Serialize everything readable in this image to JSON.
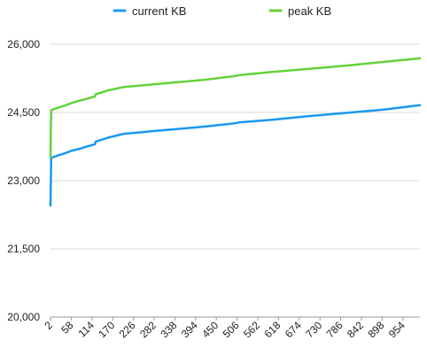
{
  "chart_data": {
    "type": "line",
    "title": "",
    "xlabel": "",
    "ylabel": "",
    "ylim": [
      20000,
      26000
    ],
    "y_ticks": [
      20000,
      21500,
      23000,
      24500,
      26000
    ],
    "y_tick_labels": [
      "20,000",
      "21,500",
      "23,000",
      "24,500",
      "26,000"
    ],
    "xlim": [
      2,
      1000
    ],
    "x_ticks": [
      2,
      58,
      114,
      170,
      226,
      282,
      338,
      394,
      450,
      506,
      562,
      618,
      674,
      730,
      786,
      842,
      898,
      954
    ],
    "x_tick_labels": [
      "2",
      "58",
      "114",
      "170",
      "226",
      "282",
      "338",
      "394",
      "450",
      "506",
      "562",
      "618",
      "674",
      "730",
      "786",
      "842",
      "898",
      "954"
    ],
    "grid": "horizontal",
    "legend_position": "top",
    "series": [
      {
        "name": "current KB",
        "color": "#1a98ee",
        "points": [
          [
            2,
            22450
          ],
          [
            3,
            23000
          ],
          [
            4,
            23500
          ],
          [
            20,
            23550
          ],
          [
            40,
            23600
          ],
          [
            60,
            23660
          ],
          [
            80,
            23700
          ],
          [
            100,
            23750
          ],
          [
            122,
            23800
          ],
          [
            124,
            23860
          ],
          [
            160,
            23950
          ],
          [
            200,
            24030
          ],
          [
            240,
            24060
          ],
          [
            280,
            24090
          ],
          [
            350,
            24140
          ],
          [
            420,
            24190
          ],
          [
            500,
            24260
          ],
          [
            506,
            24270
          ],
          [
            510,
            24280
          ],
          [
            600,
            24340
          ],
          [
            700,
            24420
          ],
          [
            800,
            24490
          ],
          [
            900,
            24560
          ],
          [
            1000,
            24660
          ]
        ]
      },
      {
        "name": "peak KB",
        "color": "#64d13a",
        "points": [
          [
            2,
            23500
          ],
          [
            3,
            24150
          ],
          [
            4,
            24550
          ],
          [
            20,
            24600
          ],
          [
            40,
            24650
          ],
          [
            60,
            24710
          ],
          [
            80,
            24760
          ],
          [
            100,
            24800
          ],
          [
            122,
            24850
          ],
          [
            124,
            24900
          ],
          [
            160,
            24990
          ],
          [
            200,
            25060
          ],
          [
            240,
            25090
          ],
          [
            280,
            25120
          ],
          [
            350,
            25170
          ],
          [
            420,
            25220
          ],
          [
            500,
            25300
          ],
          [
            506,
            25310
          ],
          [
            510,
            25320
          ],
          [
            600,
            25390
          ],
          [
            700,
            25460
          ],
          [
            800,
            25530
          ],
          [
            900,
            25610
          ],
          [
            1000,
            25690
          ]
        ]
      }
    ]
  }
}
